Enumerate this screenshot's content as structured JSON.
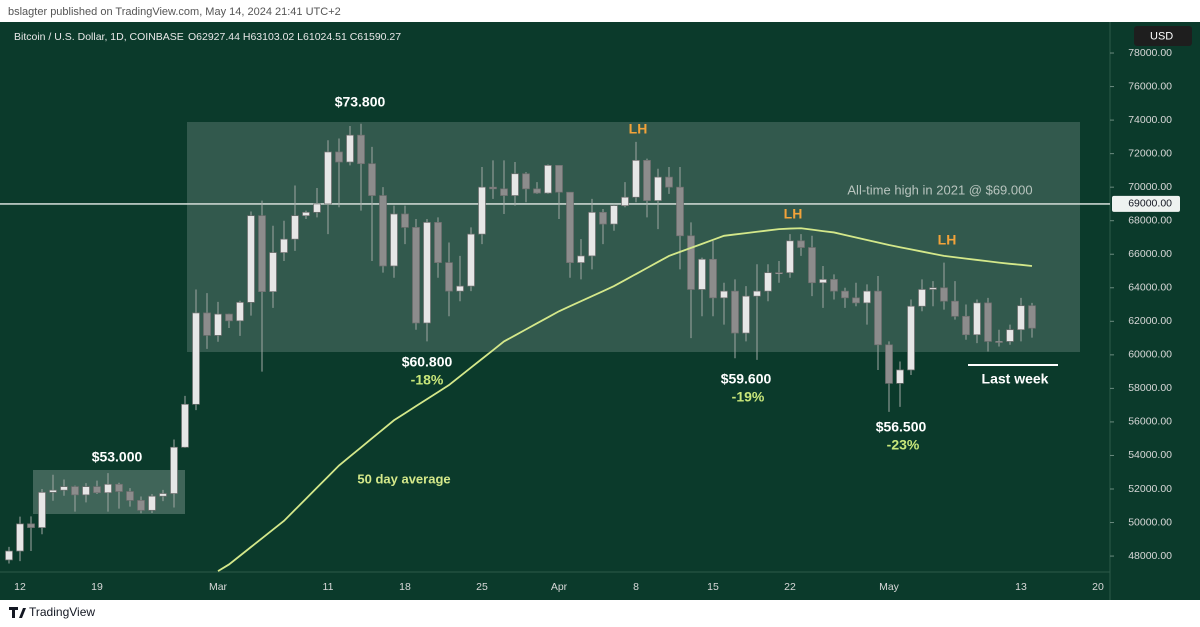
{
  "chart_data": {
    "type": "candlestick",
    "header": "bslagter published on TradingView.com, May 14, 2024 21:41 UTC+2",
    "symbol": "Bitcoin / U.S. Dollar, 1D, COINBASE",
    "ohlc_text": "O62927.44 H63103.02 L61024.51 C61590.27",
    "currency": "USD",
    "brand": "TradingView",
    "up_color": "#e6e6e6",
    "down_color": "#8c8c8c",
    "categories": [
      null,
      "12",
      null,
      null,
      null,
      null,
      null,
      null,
      "19",
      null,
      null,
      null,
      null,
      null,
      null,
      null,
      null,
      null,
      null,
      "Mar",
      null,
      null,
      null,
      null,
      null,
      null,
      null,
      null,
      null,
      "11",
      null,
      null,
      null,
      null,
      null,
      null,
      "18",
      null,
      null,
      null,
      null,
      null,
      null,
      "25",
      null,
      null,
      null,
      null,
      null,
      null,
      "Apr",
      null,
      null,
      null,
      null,
      null,
      null,
      "8",
      null,
      null,
      null,
      null,
      null,
      null,
      "15",
      null,
      null,
      null,
      null,
      null,
      null,
      "22",
      null,
      null,
      null,
      null,
      null,
      null,
      null,
      null,
      "May",
      null,
      null,
      null,
      null,
      null,
      null,
      null,
      null,
      null,
      null,
      null,
      "13",
      null,
      null,
      null,
      null,
      null,
      null,
      "20"
    ],
    "open": [
      47770,
      48300,
      49920,
      49700,
      51800,
      51930,
      52140,
      51650,
      52140,
      51780,
      52280,
      51850,
      51320,
      50730,
      51570,
      51730,
      54490,
      57050,
      62500,
      61160,
      62430,
      62030,
      63130,
      68300,
      63770,
      66100,
      66900,
      68300,
      68500,
      69000,
      72100,
      71500,
      73100,
      71400,
      69500,
      65300,
      68400,
      67600,
      61900,
      67900,
      65500,
      63800,
      64100,
      67200,
      70000,
      69900,
      69500,
      70800,
      69900,
      69650,
      71300,
      69700,
      65500,
      65900,
      68500,
      67800,
      68900,
      69400,
      71600,
      69200,
      70600,
      70000,
      67100,
      63900,
      65700,
      63400,
      63800,
      61300,
      63500,
      63800,
      64900,
      64900,
      66800,
      66400,
      64300,
      64500,
      63800,
      63400,
      63100,
      63800,
      60600,
      58300,
      59100,
      62900,
      63900,
      64000,
      63200,
      62300,
      61200,
      63100,
      60800,
      60800,
      61500,
      62930,
      null,
      null,
      null,
      null,
      null,
      null
    ],
    "high": [
      48550,
      50350,
      50370,
      52000,
      52850,
      52570,
      52200,
      52350,
      52500,
      52950,
      52370,
      52050,
      51550,
      51700,
      51950,
      54950,
      57550,
      63900,
      63680,
      63160,
      62450,
      63230,
      68550,
      69200,
      67700,
      68000,
      70100,
      68600,
      69950,
      72800,
      72900,
      73650,
      73780,
      72400,
      70000,
      68900,
      68900,
      68100,
      68100,
      68200,
      66700,
      65900,
      67600,
      71200,
      71600,
      71600,
      71500,
      70900,
      70300,
      71350,
      71300,
      69700,
      66900,
      69300,
      68700,
      69000,
      70300,
      72700,
      71700,
      71100,
      71200,
      71200,
      67900,
      65800,
      66800,
      64300,
      64500,
      64100,
      65400,
      65400,
      65600,
      67200,
      67200,
      67100,
      65300,
      64800,
      64000,
      64300,
      64200,
      64700,
      60800,
      59600,
      63300,
      64500,
      64400,
      65500,
      64400,
      63000,
      63300,
      63400,
      61500,
      61800,
      63400,
      63103,
      null,
      null,
      null,
      null,
      null,
      null
    ],
    "low": [
      47560,
      47700,
      48300,
      49300,
      51300,
      51600,
      50650,
      51200,
      51700,
      50650,
      50830,
      50950,
      50550,
      50570,
      51280,
      50900,
      54450,
      56700,
      60360,
      60780,
      61600,
      61130,
      62340,
      59000,
      62800,
      65600,
      66200,
      68100,
      68200,
      67200,
      68800,
      71300,
      68600,
      65600,
      64900,
      64600,
      66600,
      61500,
      60800,
      64600,
      62300,
      63200,
      63800,
      66600,
      69300,
      68400,
      68900,
      69100,
      69600,
      69600,
      68100,
      64600,
      64500,
      65100,
      66600,
      67400,
      68800,
      69100,
      68200,
      67500,
      69600,
      65100,
      61000,
      62300,
      62300,
      61800,
      59800,
      60800,
      59700,
      63200,
      64300,
      64600,
      65900,
      63500,
      62800,
      63300,
      62800,
      62900,
      61800,
      59100,
      56600,
      56900,
      58800,
      62600,
      62900,
      62700,
      62100,
      60900,
      60700,
      60200,
      60500,
      60600,
      60800,
      61024,
      null,
      null,
      null,
      null,
      null,
      null
    ],
    "close": [
      48300,
      49920,
      49700,
      51800,
      51930,
      52140,
      51650,
      52140,
      51780,
      52280,
      51850,
      51320,
      50730,
      51570,
      51730,
      54490,
      57050,
      62500,
      61160,
      62430,
      62030,
      63130,
      68300,
      63770,
      66100,
      66900,
      68300,
      68500,
      69000,
      72100,
      71500,
      73100,
      71400,
      69500,
      65300,
      68400,
      67600,
      61900,
      67900,
      65500,
      63800,
      64100,
      67200,
      70000,
      69900,
      69500,
      70800,
      69900,
      69650,
      71300,
      69700,
      65500,
      65900,
      68500,
      67800,
      68900,
      69400,
      71600,
      69200,
      70600,
      70000,
      67100,
      63900,
      65700,
      63400,
      63800,
      61300,
      63500,
      63800,
      64900,
      64900,
      66800,
      66400,
      64300,
      64500,
      63800,
      63400,
      63100,
      63800,
      60600,
      58300,
      59100,
      62900,
      63900,
      64000,
      63200,
      62300,
      61200,
      63100,
      60800,
      60800,
      61500,
      62930,
      61590,
      null,
      null,
      null,
      null,
      null,
      null
    ],
    "moving_average": {
      "label": "50 day average",
      "color": "#d4e88a",
      "values": [
        null,
        null,
        null,
        null,
        null,
        null,
        null,
        null,
        null,
        null,
        null,
        null,
        null,
        null,
        null,
        null,
        null,
        null,
        null,
        47100,
        47500,
        48020,
        48540,
        49060,
        49580,
        50100,
        50760,
        51420,
        52080,
        52740,
        53400,
        53940,
        54480,
        55020,
        55560,
        56100,
        56520,
        56940,
        57360,
        57780,
        58200,
        58720,
        59240,
        59760,
        60280,
        60800,
        61160,
        61520,
        61880,
        62240,
        62600,
        62900,
        63200,
        63500,
        63800,
        64100,
        64460,
        64820,
        65180,
        65540,
        65900,
        66140,
        66380,
        66620,
        66860,
        67100,
        67180,
        67260,
        67340,
        67420,
        67500,
        67530,
        67550,
        67470,
        67380,
        67300,
        67150,
        67000,
        66850,
        66700,
        66550,
        66420,
        66290,
        66160,
        66030,
        65900,
        65820,
        65740,
        65660,
        65580,
        65500,
        65430,
        65370,
        65300,
        null,
        null,
        null,
        null,
        null,
        null
      ]
    },
    "hline": {
      "value": 69000,
      "label": "69000.00",
      "text": "All-time high in 2021 @ $69.000"
    },
    "annotations": [
      {
        "text": "$73.800",
        "color": "#ffffff"
      },
      {
        "text": "$60.800",
        "color": "#ffffff"
      },
      {
        "text": "-18%",
        "color": "#c8e67a"
      },
      {
        "text": "$59.600",
        "color": "#ffffff"
      },
      {
        "text": "-19%",
        "color": "#c8e67a"
      },
      {
        "text": "$56.500",
        "color": "#ffffff"
      },
      {
        "text": "-23%",
        "color": "#c8e67a"
      },
      {
        "text": "$53.000",
        "color": "#ffffff"
      },
      {
        "text": "LH",
        "color": "#f2a33a"
      },
      {
        "text": "LH",
        "color": "#f2a33a"
      },
      {
        "text": "LH",
        "color": "#f2a33a"
      },
      {
        "text": "Last week",
        "color": "#ffffff"
      }
    ],
    "ylim": [
      47050,
      79850
    ],
    "yticks": [
      {
        "value": 48000,
        "label": "48000.00"
      },
      {
        "value": 50000,
        "label": "50000.00"
      },
      {
        "value": 52000,
        "label": "52000.00"
      },
      {
        "value": 54000,
        "label": "54000.00"
      },
      {
        "value": 56000,
        "label": "56000.00"
      },
      {
        "value": 58000,
        "label": "58000.00"
      },
      {
        "value": 60000,
        "label": "60000.00"
      },
      {
        "value": 62000,
        "label": "62000.00"
      },
      {
        "value": 64000,
        "label": "64000.00"
      },
      {
        "value": 66000,
        "label": "66000.00"
      },
      {
        "value": 68000,
        "label": "68000.00"
      },
      {
        "value": 70000,
        "label": "70000.00"
      },
      {
        "value": 72000,
        "label": "72000.00"
      },
      {
        "value": 74000,
        "label": "74000.00"
      },
      {
        "value": 76000,
        "label": "76000.00"
      },
      {
        "value": 78000,
        "label": "78000.00"
      }
    ]
  }
}
